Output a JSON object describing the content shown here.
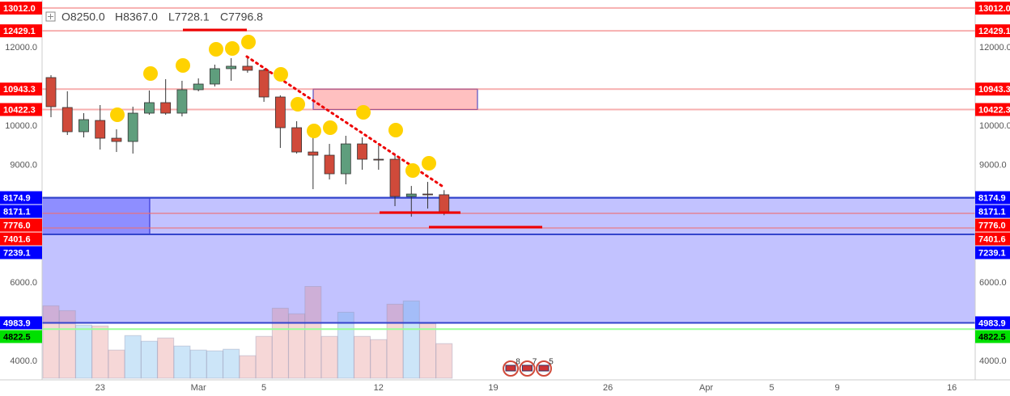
{
  "chart_data": {
    "type": "candlestick",
    "header": [
      "O8250.0",
      "H8367.0",
      "L7728.1",
      "C7796.8"
    ],
    "categories": [
      null,
      null,
      null,
      "23",
      null,
      null,
      null,
      null,
      null,
      "Mar",
      null,
      null,
      null,
      "5",
      null,
      null,
      null,
      null,
      null,
      null,
      "12",
      null,
      null,
      null,
      null,
      null,
      null,
      "19",
      null,
      null,
      null,
      null,
      null,
      null,
      "26",
      null,
      null,
      null,
      null,
      null,
      "Apr",
      null,
      null,
      null,
      "5",
      null,
      null,
      null,
      "9",
      null,
      null,
      null,
      null,
      null,
      null,
      "16"
    ],
    "open": [
      11237,
      10474,
      9856,
      10144,
      9691,
      9608,
      10330,
      10598,
      10330,
      10928,
      11072,
      11464,
      11526,
      11423,
      10742,
      9959,
      9340,
      9258,
      8784,
      9546,
      9155,
      9155,
      8206,
      8268,
      8250,
      null,
      null,
      null,
      null,
      null,
      null,
      null,
      null,
      null,
      null,
      null,
      null,
      null,
      null,
      null,
      null,
      null,
      null,
      null,
      null,
      null,
      null,
      null,
      null,
      null,
      null,
      null,
      null,
      null,
      null,
      null
    ],
    "high": [
      11299,
      10887,
      10330,
      10536,
      9918,
      10495,
      10907,
      11196,
      11155,
      11216,
      11567,
      11732,
      11773,
      11464,
      10784,
      10124,
      9918,
      9546,
      9753,
      9711,
      9505,
      9258,
      8474,
      8577,
      8367,
      null,
      null,
      null,
      null,
      null,
      null,
      null,
      null,
      null,
      null,
      null,
      null,
      null,
      null,
      null,
      null,
      null,
      null,
      null,
      null,
      null,
      null,
      null,
      null,
      null,
      null,
      null,
      null,
      null,
      null,
      null
    ],
    "low": [
      10227,
      9773,
      9711,
      9402,
      9340,
      9299,
      10289,
      10289,
      10247,
      10887,
      11010,
      11155,
      11361,
      10619,
      9443,
      9299,
      8392,
      8639,
      8515,
      8887,
      8887,
      7959,
      7691,
      7897,
      7728.1,
      null,
      null,
      null,
      null,
      null,
      null,
      null,
      null,
      null,
      null,
      null,
      null,
      null,
      null,
      null,
      null,
      null,
      null,
      null,
      null,
      null,
      null,
      null,
      null,
      null,
      null,
      null,
      null,
      null,
      null,
      null
    ],
    "close": [
      10495,
      9856,
      10165,
      9691,
      9608,
      10330,
      10598,
      10330,
      10928,
      11072,
      11464,
      11526,
      11423,
      10742,
      9959,
      9340,
      9258,
      8784,
      9546,
      9155,
      9134,
      8206,
      8268,
      8247,
      7796.8,
      null,
      null,
      null,
      null,
      null,
      null,
      null,
      null,
      null,
      null,
      null,
      null,
      null,
      null,
      null,
      null,
      null,
      null,
      null,
      null,
      null,
      null,
      null,
      null,
      null,
      null,
      null,
      null,
      null,
      null,
      null
    ],
    "volume": [
      90,
      84,
      66,
      65,
      35,
      53,
      46,
      50,
      40,
      35,
      34,
      36,
      28,
      52,
      87,
      80,
      114,
      52,
      82,
      52,
      48,
      92,
      96,
      68,
      43,
      null,
      null,
      null,
      null,
      null,
      null,
      null,
      null,
      null,
      null,
      null,
      null,
      null,
      null,
      null,
      null,
      null,
      null,
      null,
      null,
      null,
      null,
      null,
      null,
      null,
      null,
      null,
      null,
      null,
      null,
      null
    ],
    "up_color": "#5f9e7d",
    "down_color": "#d04a3a",
    "ylim": [
      3530,
      13215
    ],
    "yticks": [
      {
        "value": 4000,
        "label": "4000.0"
      },
      {
        "value": 6000,
        "label": "6000.0"
      },
      {
        "value": 9000,
        "label": "9000.0"
      },
      {
        "value": 10000,
        "label": "10000.0"
      },
      {
        "value": 12000,
        "label": "12000.0"
      }
    ],
    "y2lim": [
      0,
      470
    ],
    "price_markers": [
      {
        "value": 13012.0,
        "label": "13012.0",
        "color": "#ff0000"
      },
      {
        "value": 12429.1,
        "label": "12429.1",
        "color": "#ff0000"
      },
      {
        "value": 10943.3,
        "label": "10943.3",
        "color": "#ff0000"
      },
      {
        "value": 10422.3,
        "label": "10422.3",
        "color": "#ff0000"
      },
      {
        "value": 8174.9,
        "label": "8174.9",
        "color": "#0000ff"
      },
      {
        "value": 8171.1,
        "label": "8171.1",
        "color": "#0000ff"
      },
      {
        "value": 7776.0,
        "label": "7776.0",
        "color": "#ff0000"
      },
      {
        "value": 7401.6,
        "label": "7401.6",
        "color": "#ff0000"
      },
      {
        "value": 7239.1,
        "label": "7239.1",
        "color": "#0000ff"
      },
      {
        "value": 4983.9,
        "label": "4983.9",
        "color": "#0000ff"
      },
      {
        "value": 4822.5,
        "label": "4822.5",
        "color": "#00e000"
      }
    ],
    "events": [
      "8",
      "7",
      "5"
    ]
  }
}
